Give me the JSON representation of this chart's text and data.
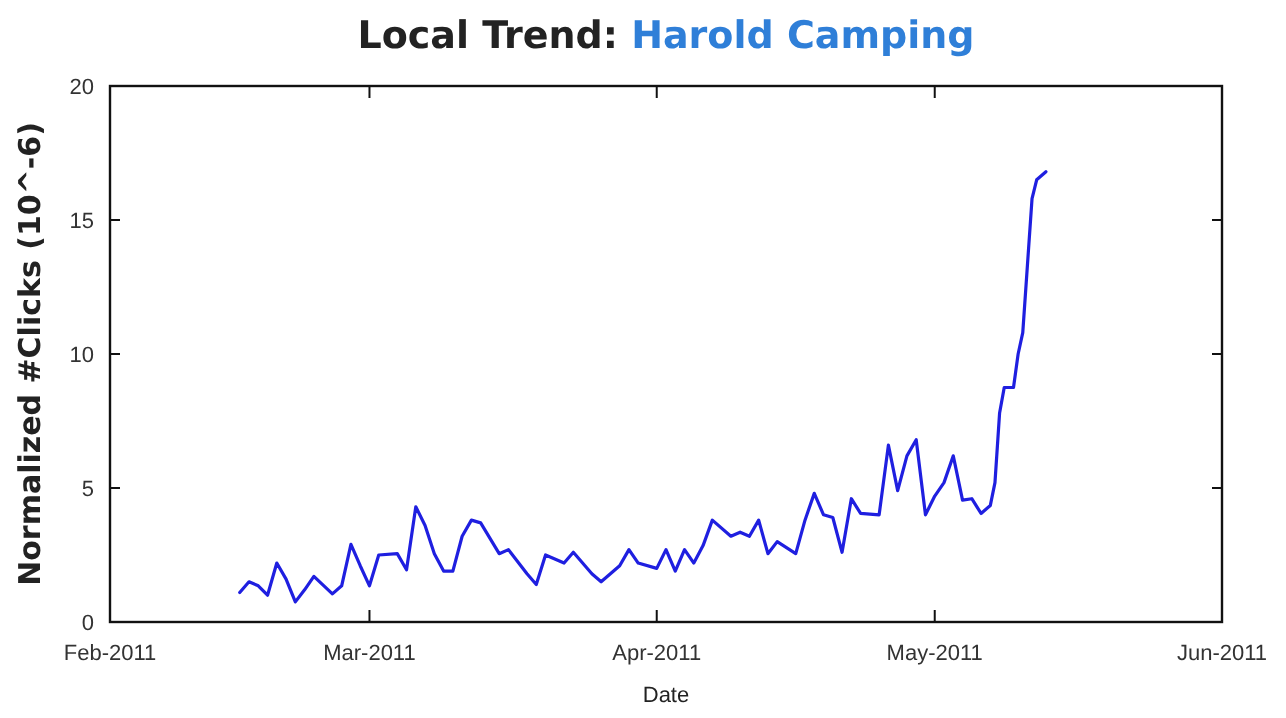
{
  "chart_data": {
    "type": "line",
    "title": "Local Trend: Harold Camping",
    "xlabel": "Date",
    "ylabel": "Normalized #Clicks (10^-6)",
    "xlim": [
      "2011-02-01",
      "2011-06-01"
    ],
    "xticks": [
      {
        "value": "2011-02-01",
        "label": "Feb-2011"
      },
      {
        "value": "2011-03-01",
        "label": "Mar-2011"
      },
      {
        "value": "2011-04-01",
        "label": "Apr-2011"
      },
      {
        "value": "2011-05-01",
        "label": "May-2011"
      },
      {
        "value": "2011-06-01",
        "label": "Jun-2011"
      }
    ],
    "ylim": [
      0,
      20
    ],
    "yticks": [
      0,
      5,
      10,
      15,
      20
    ],
    "grid": false,
    "marker": "none",
    "line_style": "solid",
    "series": [
      {
        "color": "#1f1fe0",
        "x": [
          "2011-02-15",
          "2011-02-16",
          "2011-02-17",
          "2011-02-18",
          "2011-02-19",
          "2011-02-20",
          "2011-02-21",
          "2011-02-22",
          "2011-02-23",
          "2011-02-25",
          "2011-02-26",
          "2011-02-27",
          "2011-02-28",
          "2011-03-01",
          "2011-03-02",
          "2011-03-04",
          "2011-03-05",
          "2011-03-06",
          "2011-03-07",
          "2011-03-08",
          "2011-03-09",
          "2011-03-10",
          "2011-03-11",
          "2011-03-12",
          "2011-03-13",
          "2011-03-15",
          "2011-03-16",
          "2011-03-18",
          "2011-03-19",
          "2011-03-20",
          "2011-03-22",
          "2011-03-23",
          "2011-03-25",
          "2011-03-26",
          "2011-03-28",
          "2011-03-29",
          "2011-03-30",
          "2011-04-01",
          "2011-04-02",
          "2011-04-03",
          "2011-04-04",
          "2011-04-05",
          "2011-04-06",
          "2011-04-07",
          "2011-04-09",
          "2011-04-10",
          "2011-04-11",
          "2011-04-12",
          "2011-04-13",
          "2011-04-14",
          "2011-04-16",
          "2011-04-17",
          "2011-04-18",
          "2011-04-19",
          "2011-04-20",
          "2011-04-21",
          "2011-04-22",
          "2011-04-23",
          "2011-04-25",
          "2011-04-26",
          "2011-04-27",
          "2011-04-28",
          "2011-04-29",
          "2011-04-30",
          "2011-05-01",
          "2011-05-02",
          "2011-05-03",
          "2011-05-04",
          "2011-05-05",
          "2011-05-06",
          "2011-05-07",
          "2011-05-07T12:00",
          "2011-05-08",
          "2011-05-08T12:00",
          "2011-05-09T12:00",
          "2011-05-10",
          "2011-05-10T12:00",
          "2011-05-11",
          "2011-05-11T12:00",
          "2011-05-12",
          "2011-05-13"
        ],
        "values": [
          1.1,
          1.5,
          1.35,
          1.0,
          2.2,
          1.6,
          0.75,
          1.2,
          1.7,
          1.05,
          1.35,
          2.9,
          2.1,
          1.35,
          2.5,
          2.55,
          1.95,
          4.3,
          3.6,
          2.55,
          1.9,
          1.9,
          3.2,
          3.8,
          3.7,
          2.55,
          2.7,
          1.8,
          1.4,
          2.5,
          2.2,
          2.6,
          1.8,
          1.5,
          2.1,
          2.7,
          2.2,
          2.0,
          2.7,
          1.9,
          2.7,
          2.2,
          2.85,
          3.8,
          3.2,
          3.35,
          3.2,
          3.8,
          2.55,
          3.0,
          2.55,
          3.8,
          4.8,
          4.0,
          3.9,
          2.6,
          4.6,
          4.05,
          4.0,
          6.6,
          4.9,
          6.2,
          6.8,
          4.0,
          4.7,
          5.2,
          6.2,
          4.55,
          4.6,
          4.05,
          4.35,
          5.2,
          7.8,
          8.75,
          8.75,
          10.0,
          10.8,
          13.3,
          15.8,
          16.5,
          16.8
        ]
      }
    ]
  }
}
